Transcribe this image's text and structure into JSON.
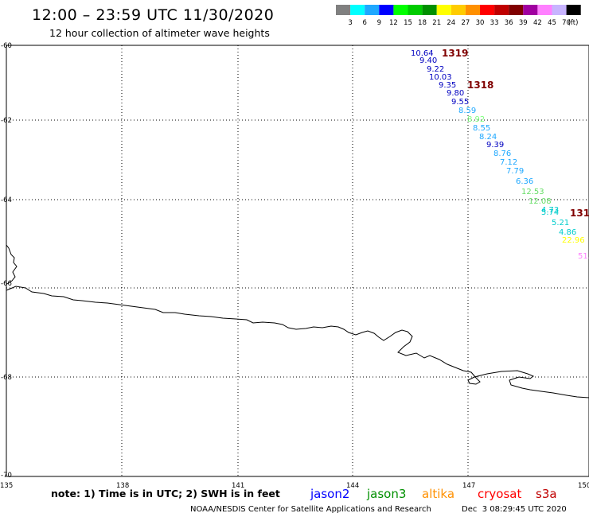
{
  "header": {
    "title": "12:00 – 23:59 UTC 11/30/2020",
    "subtitle": "12 hour collection of altimeter wave heights"
  },
  "legend": {
    "colors": [
      "#808080",
      "#00ffff",
      "#1fa8ff",
      "#0000ff",
      "#00ff00",
      "#00cc00",
      "#009000",
      "#ffff00",
      "#ffcc00",
      "#ff9000",
      "#ff0000",
      "#c00000",
      "#800000",
      "#a000a0",
      "#ff80ff",
      "#c8b4ff",
      "#000000"
    ],
    "labels": [
      "3",
      "6",
      "9",
      "12",
      "15",
      "18",
      "21",
      "24",
      "27",
      "30",
      "33",
      "36",
      "39",
      "42",
      "45",
      "70"
    ],
    "unit": "(ft)"
  },
  "axes": {
    "lat_labels": [
      "-60",
      "-62",
      "-64",
      "-66",
      "-68",
      "-70"
    ],
    "lon_labels": [
      "135",
      "138",
      "141",
      "144",
      "147",
      "150"
    ]
  },
  "passes": [
    {
      "label": "1319",
      "color": "#800000"
    },
    {
      "label": "1318",
      "color": "#800000"
    },
    {
      "label": "131",
      "color": "#800000"
    }
  ],
  "wave_heights": [
    {
      "value": "10.64",
      "color": "#0000c0"
    },
    {
      "value": "9.40",
      "color": "#0000c0"
    },
    {
      "value": "9.22",
      "color": "#0000c0"
    },
    {
      "value": "10.03",
      "color": "#0000c0"
    },
    {
      "value": "9.35",
      "color": "#0000c0"
    },
    {
      "value": "9.80",
      "color": "#0000c0"
    },
    {
      "value": "9.55",
      "color": "#0000c0"
    },
    {
      "value": "8.59",
      "color": "#1fa8ff"
    },
    {
      "value": "8.92",
      "color": "#7fff7f"
    },
    {
      "value": "8.55",
      "color": "#1fa8ff"
    },
    {
      "value": "8.24",
      "color": "#1fa8ff"
    },
    {
      "value": "9.39",
      "color": "#0000c0"
    },
    {
      "value": "8.76",
      "color": "#1fa8ff"
    },
    {
      "value": "7.12",
      "color": "#1fa8ff"
    },
    {
      "value": "7.79",
      "color": "#1fa8ff"
    },
    {
      "value": "6.36",
      "color": "#1fa8ff"
    },
    {
      "value": "12.53",
      "color": "#66dd66"
    },
    {
      "value": "12.08",
      "color": "#66dd66"
    },
    {
      "value": "4.73",
      "color": "#00cccc"
    },
    {
      "value": "5.74",
      "color": "#00cccc"
    },
    {
      "value": "5.21",
      "color": "#00cccc"
    },
    {
      "value": "4.86",
      "color": "#00cccc"
    },
    {
      "value": "22.96",
      "color": "#ffff00"
    },
    {
      "value": "51.",
      "color": "#ff80ff"
    }
  ],
  "footer": {
    "note": "note: 1) Time is in UTC; 2) SWH is in feet",
    "satellites": [
      {
        "name": "jason2",
        "color": "#0000ff"
      },
      {
        "name": "jason3",
        "color": "#009000"
      },
      {
        "name": "altika",
        "color": "#ff9000"
      },
      {
        "name": "cryosat",
        "color": "#ff0000"
      },
      {
        "name": "s3a",
        "color": "#c00000"
      }
    ],
    "credit": "NOAA/NESDIS Center for Satellite Applications and Research",
    "timestamp": "Dec  3 08:29:45 UTC 2020"
  }
}
